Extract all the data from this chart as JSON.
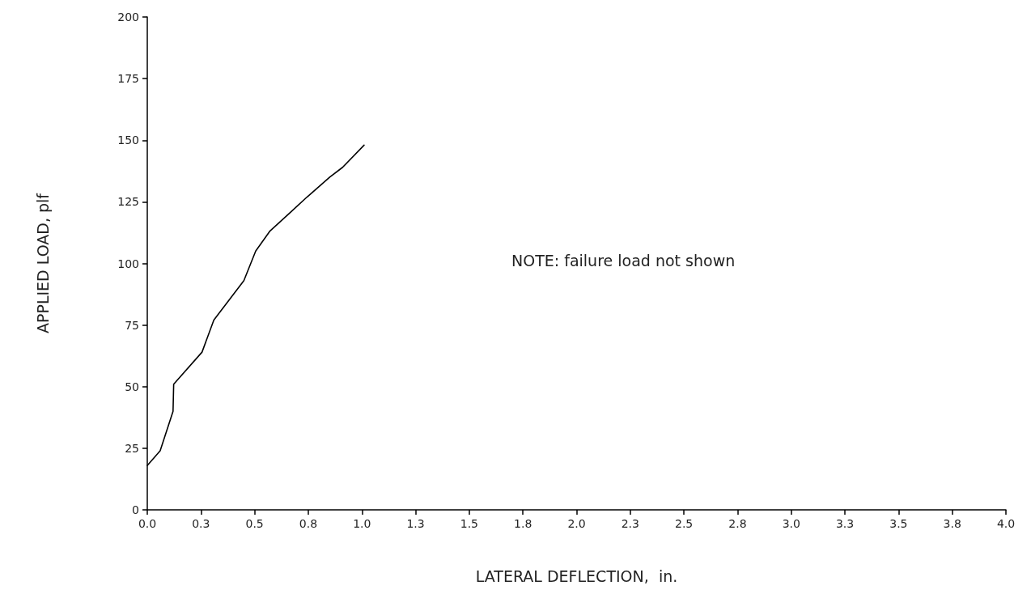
{
  "chart_data": {
    "type": "line",
    "xlabel": "LATERAL DEFLECTION,  in.",
    "ylabel": "APPLIED LOAD, plf",
    "annotations": [
      "NOTE: failure load not shown"
    ],
    "series": [
      {
        "color": "#000000",
        "x": [
          0,
          0.06,
          0.12,
          0.123,
          0.255,
          0.31,
          0.45,
          0.505,
          0.57,
          0.67,
          0.745,
          0.85,
          0.91,
          1.01
        ],
        "values": [
          18,
          24,
          40,
          51,
          64,
          77,
          93,
          105,
          113,
          121,
          127,
          135,
          139,
          148
        ]
      }
    ],
    "xlim": [
      0,
      4
    ],
    "ylim": [
      0,
      200
    ],
    "xticks": [
      {
        "value": 0,
        "label": "0.0"
      },
      {
        "value": 0.25,
        "label": "0.3"
      },
      {
        "value": 0.5,
        "label": "0.5"
      },
      {
        "value": 0.75,
        "label": "0.8"
      },
      {
        "value": 1,
        "label": "1.0"
      },
      {
        "value": 1.25,
        "label": "1.3"
      },
      {
        "value": 1.5,
        "label": "1.5"
      },
      {
        "value": 1.75,
        "label": "1.8"
      },
      {
        "value": 2,
        "label": "2.0"
      },
      {
        "value": 2.25,
        "label": "2.3"
      },
      {
        "value": 2.5,
        "label": "2.5"
      },
      {
        "value": 2.75,
        "label": "2.8"
      },
      {
        "value": 3,
        "label": "3.0"
      },
      {
        "value": 3.25,
        "label": "3.3"
      },
      {
        "value": 3.5,
        "label": "3.5"
      },
      {
        "value": 3.75,
        "label": "3.8"
      },
      {
        "value": 4,
        "label": "4.0"
      }
    ],
    "yticks": [
      0,
      25,
      50,
      75,
      100,
      125,
      150,
      175,
      200
    ],
    "grid": false,
    "marker": "none",
    "line_style": "solid"
  }
}
